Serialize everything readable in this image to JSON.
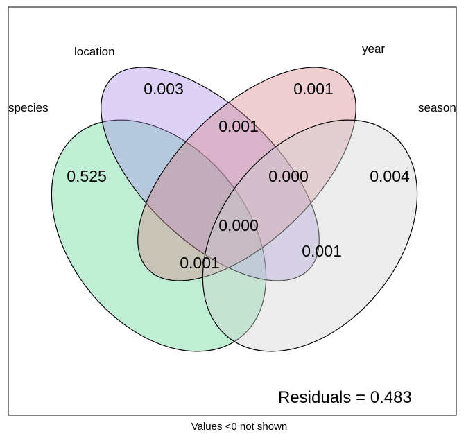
{
  "diagram": {
    "type": "venn-4-set",
    "sets": [
      {
        "name": "species",
        "color": "#5fd496"
      },
      {
        "name": "location",
        "color": "#a98ee6"
      },
      {
        "name": "year",
        "color": "#d4858a"
      },
      {
        "name": "season",
        "color": "#cfcfcf"
      }
    ],
    "regions": {
      "species_only": "0.525",
      "location_only": "0.003",
      "year_only": "0.001",
      "season_only": "0.004",
      "location_year": "0.001",
      "location_year_season": "0.000",
      "all_four": "0.000",
      "species_location_season": "0.001",
      "species_year_season": "0.001"
    },
    "residuals_text": "Residuals = 0.483",
    "footnote": "Values <0 not shown"
  }
}
